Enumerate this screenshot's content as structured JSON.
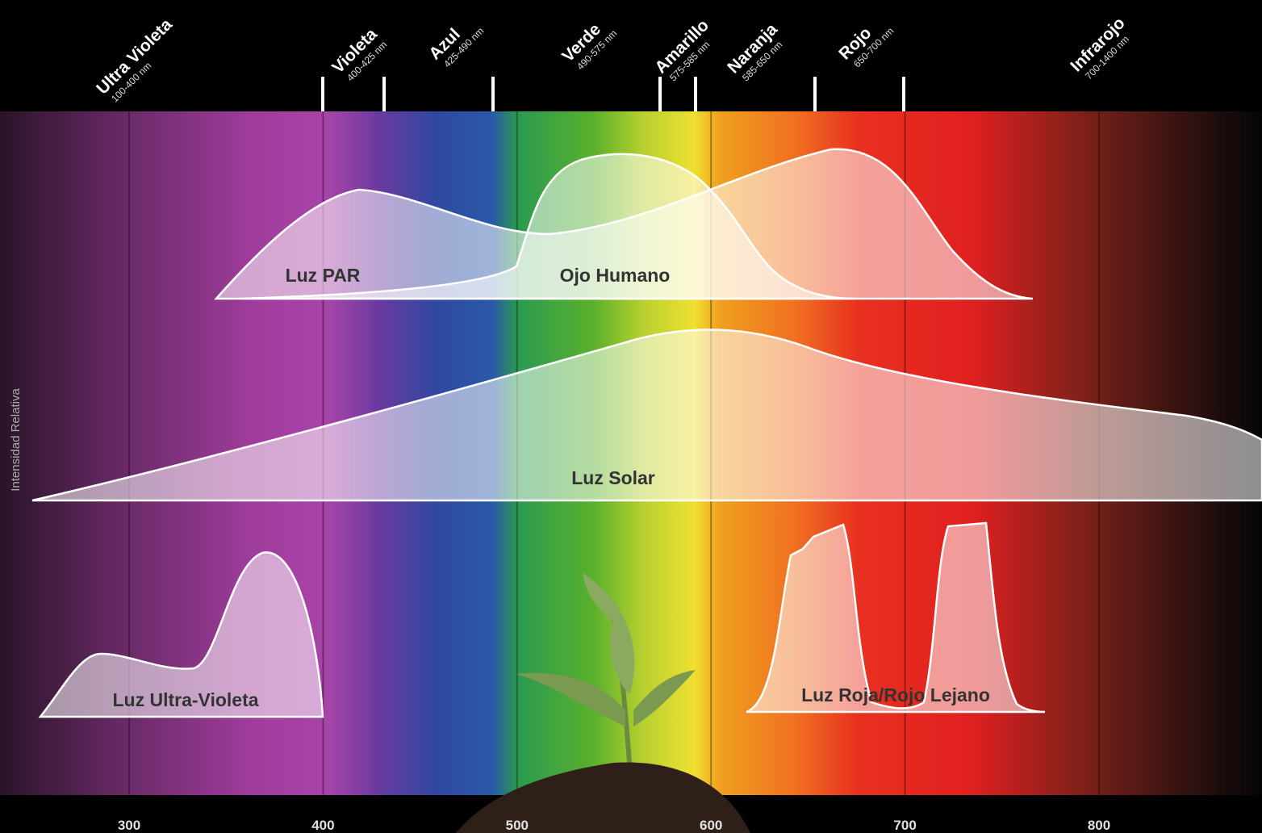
{
  "y_axis_label": "Intensidad Relativa",
  "bands": [
    {
      "name": "Ultra Violeta",
      "range": "100-400 nm"
    },
    {
      "name": "Violeta",
      "range": "400-425 nm"
    },
    {
      "name": "Azul",
      "range": "425-490 nm"
    },
    {
      "name": "Verde",
      "range": "490-575 nm"
    },
    {
      "name": "Amarillo",
      "range": "575-585 nm"
    },
    {
      "name": "Naranja",
      "range": "585-650 nm"
    },
    {
      "name": "Rojo",
      "range": "650-700 nm"
    },
    {
      "name": "Infrarojo",
      "range": "700-1400 nm"
    }
  ],
  "curves": [
    "Luz PAR",
    "Ojo Humano",
    "Luz Solar",
    "Luz Ultra-Violeta",
    "Luz Roja/Rojo Lejano"
  ],
  "x_axis": {
    "ticks": [
      300,
      400,
      500,
      600,
      700,
      800
    ]
  }
}
